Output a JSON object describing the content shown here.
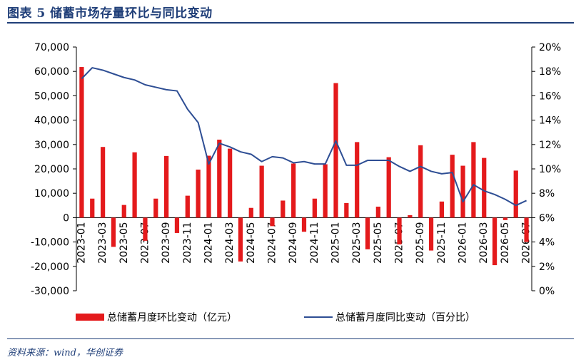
{
  "header": {
    "title": "图表 5   储蓄市场存量环比与同比变动"
  },
  "footer": {
    "source": "资料来源：wind，华创证券"
  },
  "colors": {
    "bar": "#e41a1c",
    "line": "#2e4e94",
    "axis": "#000000",
    "title": "#1f3e78"
  },
  "chart_data": {
    "type": "bar+line",
    "categories": [
      "2023-01",
      "2023-02",
      "2023-03",
      "2023-04",
      "2023-05",
      "2023-06",
      "2023-07",
      "2023-08",
      "2023-09",
      "2023-10",
      "2023-11",
      "2023-12",
      "2024-01",
      "2024-02",
      "2024-03",
      "2024-04",
      "2024-05",
      "2024-06",
      "2024-07",
      "2024-08",
      "2024-09",
      "2024-10",
      "2024-11",
      "2024-12",
      "2025-01",
      "2025-02",
      "2025-03",
      "2025-04",
      "2025-05",
      "2025-06",
      "2025-07",
      "2025-08",
      "2025-09",
      "2025-10",
      "2025-11",
      "2025-12",
      "2026-01",
      "2026-02",
      "2026-03",
      "2026-04",
      "2026-05",
      "2026-06",
      "2026-07"
    ],
    "tick_labels": [
      "2023-01",
      "2023-03",
      "2023-05",
      "2023-07",
      "2023-09",
      "2023-11",
      "2024-01",
      "2024-03",
      "2024-05",
      "2024-07",
      "2024-09",
      "2024-11",
      "2025-01",
      "2025-03",
      "2025-05",
      "2025-07",
      "2025-09",
      "2025-11",
      "2026-01",
      "2026-03",
      "2026-05",
      "2026-07"
    ],
    "series": [
      {
        "name": "总储蓄月度环比变动（亿元）",
        "axis": "left",
        "kind": "bar",
        "values": [
          61800,
          7800,
          29000,
          -12000,
          5200,
          26800,
          -9500,
          7800,
          25300,
          -6300,
          9000,
          19700,
          25400,
          32000,
          28300,
          -18000,
          4000,
          21300,
          -3500,
          7000,
          22200,
          -5800,
          7800,
          21900,
          55200,
          6000,
          31000,
          -13000,
          4500,
          24800,
          -11000,
          1000,
          29700,
          -13500,
          6600,
          25800,
          21300,
          31000,
          24500,
          -19500,
          -1000,
          19300,
          -10000
        ]
      },
      {
        "name": "总储蓄月度同比变动（百分比）",
        "axis": "right",
        "kind": "line",
        "values": [
          17.4,
          18.3,
          18.1,
          17.8,
          17.5,
          17.3,
          16.9,
          16.7,
          16.5,
          16.4,
          14.9,
          13.8,
          10.4,
          12.1,
          11.8,
          11.4,
          11.2,
          10.6,
          11.0,
          10.9,
          10.5,
          10.6,
          10.4,
          10.4,
          12.3,
          10.3,
          10.3,
          10.7,
          10.7,
          10.7,
          10.2,
          9.8,
          10.2,
          9.8,
          9.6,
          9.7,
          7.3,
          8.7,
          8.2,
          7.9,
          7.5,
          7.0,
          7.4
        ]
      }
    ],
    "y_left": {
      "min": -30000,
      "max": 70000,
      "step": 10000,
      "tick_labels": [
        "-30,000",
        "-20,000",
        "-10,000",
        "0",
        "10,000",
        "20,000",
        "30,000",
        "40,000",
        "50,000",
        "60,000",
        "70,000"
      ]
    },
    "y_right": {
      "min": 0,
      "max": 20,
      "step": 2,
      "tick_labels": [
        "0%",
        "2%",
        "4%",
        "6%",
        "8%",
        "10%",
        "12%",
        "14%",
        "16%",
        "18%",
        "20%"
      ]
    },
    "legend_position": "bottom",
    "grid": false
  }
}
